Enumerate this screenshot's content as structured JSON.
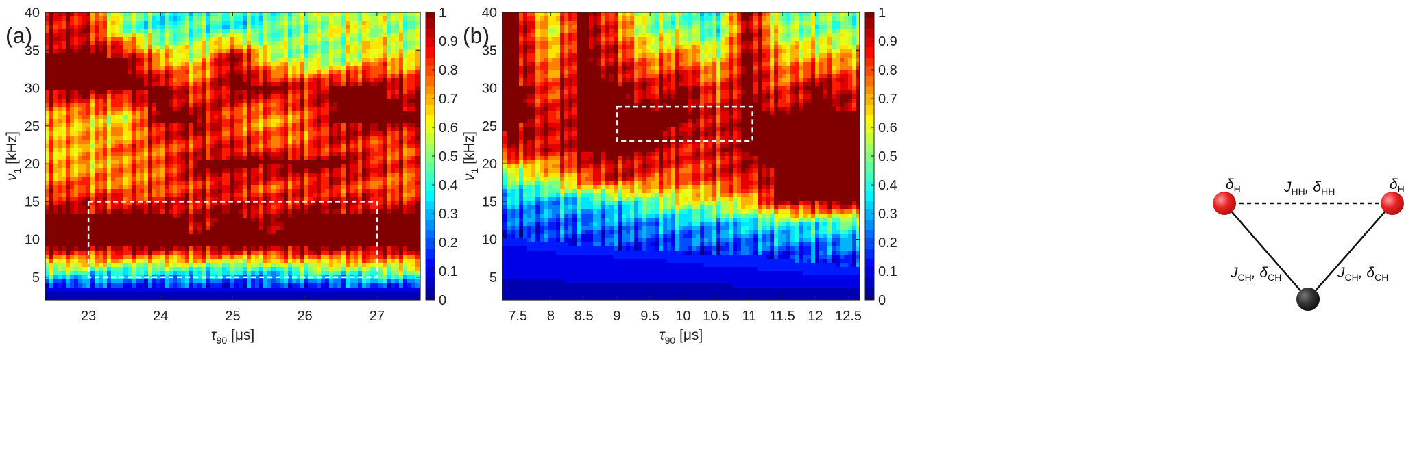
{
  "chart_data": [
    {
      "type": "heatmap",
      "panel_label": "(a)",
      "xlabel": {
        "symbol": "τ",
        "sub": "90",
        "unit": "[μs]"
      },
      "ylabel": {
        "symbol": "ν",
        "sub": "1",
        "unit": "[kHz]"
      },
      "xlim": [
        22.4,
        27.6
      ],
      "ylim": [
        2,
        40
      ],
      "zlim": [
        0,
        1
      ],
      "colormap": "jet",
      "xticks": [
        "23",
        "24",
        "25",
        "26",
        "27"
      ],
      "yticks": [
        "5",
        "10",
        "15",
        "20",
        "25",
        "30",
        "35",
        "40"
      ],
      "colorbar_ticks": [
        "0",
        "0.1",
        "0.2",
        "0.3",
        "0.4",
        "0.5",
        "0.6",
        "0.7",
        "0.8",
        "0.9",
        "1"
      ],
      "grid": false,
      "highlight_box": {
        "x": [
          23,
          27
        ],
        "y": [
          5,
          15
        ],
        "color": "#ffffff",
        "style": "dashed"
      },
      "x": [
        23,
        23.5,
        24,
        24.5,
        25,
        25.5,
        26,
        26.5,
        27,
        27.5
      ],
      "y": [
        38,
        34,
        30,
        26,
        22,
        20,
        17,
        13,
        9,
        6,
        3
      ],
      "z": [
        [
          0.9,
          0.5,
          0.4,
          0.45,
          0.4,
          0.45,
          0.5,
          0.6,
          0.55,
          0.5
        ],
        [
          1,
          1,
          0.7,
          0.6,
          1,
          0.6,
          0.5,
          0.5,
          0.7,
          0.6
        ],
        [
          1,
          1,
          1,
          0.8,
          1,
          1,
          0.9,
          1,
          1,
          0.9
        ],
        [
          0.7,
          0.6,
          1,
          1,
          0.8,
          0.7,
          0.8,
          1,
          1,
          1
        ],
        [
          0.7,
          0.8,
          0.8,
          0.85,
          0.9,
          0.85,
          0.8,
          0.9,
          0.8,
          0.8
        ],
        [
          0.7,
          0.75,
          0.8,
          1,
          1,
          1,
          1,
          1,
          0.9,
          0.85
        ],
        [
          0.8,
          0.75,
          0.8,
          0.85,
          0.9,
          0.8,
          0.85,
          0.85,
          0.8,
          0.75
        ],
        [
          1,
          1,
          1,
          0.95,
          1,
          0.95,
          1,
          1,
          1,
          1
        ],
        [
          1,
          1,
          1,
          1,
          1,
          1,
          1,
          1,
          1,
          1
        ],
        [
          0.5,
          0.45,
          0.45,
          0.45,
          0.4,
          0.4,
          0.5,
          0.5,
          0.55,
          0.55
        ],
        [
          0.05,
          0.05,
          0.05,
          0.05,
          0.05,
          0.05,
          0.05,
          0.05,
          0.05,
          0.05
        ]
      ]
    },
    {
      "type": "heatmap",
      "panel_label": "(b)",
      "xlabel": {
        "symbol": "τ",
        "sub": "90",
        "unit": "[μs]"
      },
      "ylabel": {
        "symbol": "ν",
        "sub": "1",
        "unit": "[kHz]"
      },
      "xlim": [
        7.27,
        12.67
      ],
      "ylim": [
        2,
        40
      ],
      "zlim": [
        0,
        1
      ],
      "colormap": "jet",
      "xticks": [
        "7.5",
        "8",
        "8.5",
        "9",
        "9.5",
        "10",
        "10.5",
        "11",
        "11.5",
        "12",
        "12.5"
      ],
      "yticks": [
        "5",
        "10",
        "15",
        "20",
        "25",
        "30",
        "35",
        "40"
      ],
      "colorbar_ticks": [
        "0",
        "0.1",
        "0.2",
        "0.3",
        "0.4",
        "0.5",
        "0.6",
        "0.7",
        "0.8",
        "0.9",
        "1"
      ],
      "grid": false,
      "highlight_box": {
        "x": [
          9,
          11.05
        ],
        "y": [
          23,
          27.5
        ],
        "color": "#ffffff",
        "style": "dashed"
      },
      "x": [
        7.5,
        8,
        8.5,
        9,
        9.5,
        10,
        10.5,
        11,
        11.5,
        12,
        12.5
      ],
      "y": [
        38,
        34,
        30,
        26,
        22,
        18,
        15,
        12,
        8,
        5,
        3
      ],
      "z": [
        [
          1,
          0.6,
          1,
          0.8,
          0.5,
          0.5,
          0.4,
          1,
          0.5,
          0.5,
          0.5
        ],
        [
          1,
          0.7,
          1,
          0.9,
          0.7,
          0.8,
          0.6,
          1,
          0.7,
          0.7,
          0.7
        ],
        [
          1,
          0.8,
          1,
          1,
          0.9,
          1,
          0.8,
          1,
          0.8,
          1,
          0.9
        ],
        [
          1,
          0.9,
          1,
          1,
          1,
          1,
          0.9,
          1,
          1,
          1,
          1
        ],
        [
          0.95,
          0.9,
          1,
          1,
          1,
          0.9,
          0.9,
          1,
          1,
          1,
          1
        ],
        [
          0.5,
          0.6,
          0.8,
          0.9,
          0.8,
          0.8,
          0.85,
          0.9,
          1,
          1,
          1
        ],
        [
          0.3,
          0.3,
          0.35,
          0.4,
          0.5,
          0.6,
          0.6,
          0.7,
          1,
          1,
          1
        ],
        [
          0.2,
          0.2,
          0.22,
          0.25,
          0.25,
          0.3,
          0.3,
          0.35,
          0.4,
          0.4,
          0.45
        ],
        [
          0.1,
          0.12,
          0.12,
          0.13,
          0.13,
          0.14,
          0.15,
          0.15,
          0.16,
          0.17,
          0.18
        ],
        [
          0.08,
          0.08,
          0.09,
          0.09,
          0.1,
          0.1,
          0.1,
          0.11,
          0.11,
          0.12,
          0.12
        ],
        [
          0.05,
          0.05,
          0.05,
          0.05,
          0.05,
          0.05,
          0.05,
          0.05,
          0.05,
          0.05,
          0.05
        ]
      ]
    }
  ],
  "molecule": {
    "atom_colors": {
      "hydrogen": "#e52222",
      "carbon": "#222222"
    },
    "h_left_label": {
      "sym": "δ",
      "sub": "H"
    },
    "h_right_label": {
      "sym": "δ",
      "sub": "H"
    },
    "hh_label": {
      "j": "J",
      "jsub": "HH",
      "d": "δ",
      "dsub": "HH"
    },
    "ch_left_label": {
      "j": "J",
      "jsub": "CH",
      "d": "δ",
      "dsub": "CH"
    },
    "ch_right_label": {
      "j": "J",
      "jsub": "CH",
      "d": "δ",
      "dsub": "CH"
    }
  }
}
